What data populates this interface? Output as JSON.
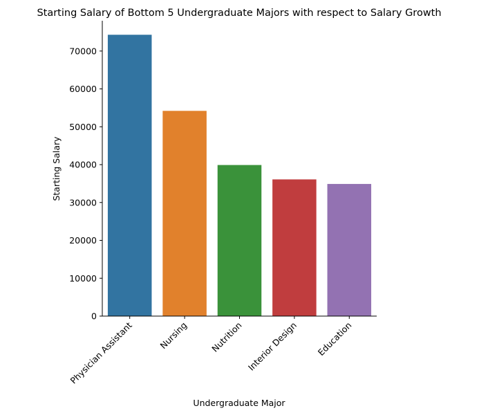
{
  "chart_data": {
    "type": "bar",
    "title": "Starting Salary of Bottom 5 Undergraduate Majors with respect to Salary Growth",
    "xlabel": "Undergraduate Major",
    "ylabel": "Starting Salary",
    "categories": [
      "Physician Assistant",
      "Nursing",
      "Nutrition",
      "Interior Design",
      "Education"
    ],
    "values": [
      74300,
      54200,
      39900,
      36100,
      34900
    ],
    "colors": [
      "#3274a1",
      "#e1812c",
      "#3a923a",
      "#c03d3e",
      "#9372b2"
    ],
    "ylim": [
      0,
      78000
    ],
    "yticks": [
      0,
      10000,
      20000,
      30000,
      40000,
      50000,
      60000,
      70000
    ],
    "grid": false,
    "legend": "none"
  }
}
